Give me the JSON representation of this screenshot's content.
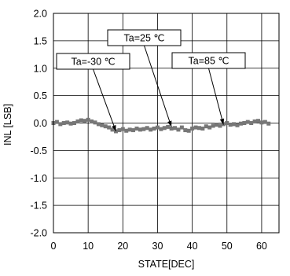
{
  "chart_data": {
    "type": "line",
    "xlabel": "STATE[DEC]",
    "ylabel": "INL [LSB]",
    "xlim": [
      0,
      65
    ],
    "ylim": [
      -2.0,
      2.0
    ],
    "x_ticks": [
      "0",
      "10",
      "20",
      "30",
      "40",
      "50",
      "60"
    ],
    "y_ticks": [
      "2.0",
      "1.5",
      "1.0",
      "0.5",
      "0.0",
      "-0.5",
      "-1.0",
      "-1.5",
      "-2.0"
    ],
    "grid": true,
    "series_color": "#777777",
    "x": [
      0,
      1,
      2,
      3,
      4,
      5,
      6,
      7,
      8,
      9,
      10,
      11,
      12,
      13,
      14,
      15,
      16,
      17,
      18,
      19,
      20,
      21,
      22,
      23,
      24,
      25,
      26,
      27,
      28,
      29,
      30,
      31,
      32,
      33,
      34,
      35,
      36,
      37,
      38,
      39,
      40,
      41,
      42,
      43,
      44,
      45,
      46,
      47,
      48,
      49,
      50,
      51,
      52,
      53,
      54,
      55,
      56,
      57,
      58,
      59,
      60,
      61,
      62
    ],
    "values": [
      0.0,
      0.02,
      -0.02,
      0.0,
      0.01,
      -0.01,
      0.0,
      0.03,
      0.05,
      0.04,
      0.06,
      0.03,
      0.01,
      -0.02,
      -0.04,
      -0.06,
      -0.08,
      -0.12,
      -0.15,
      -0.13,
      -0.11,
      -0.14,
      -0.12,
      -0.13,
      -0.1,
      -0.12,
      -0.11,
      -0.09,
      -0.12,
      -0.1,
      -0.08,
      -0.11,
      -0.09,
      -0.07,
      -0.1,
      -0.09,
      -0.12,
      -0.08,
      -0.13,
      -0.14,
      -0.1,
      -0.08,
      -0.09,
      -0.1,
      -0.06,
      -0.08,
      -0.05,
      -0.03,
      -0.05,
      -0.02,
      0.0,
      -0.03,
      -0.02,
      -0.04,
      -0.01,
      0.0,
      0.02,
      0.0,
      0.03,
      0.04,
      0.01,
      0.02,
      -0.01
    ],
    "annotations": [
      {
        "text": "Ta=-30 ℃",
        "target": [
          18,
          -0.15
        ]
      },
      {
        "text": "Ta=25 ℃",
        "target": [
          34,
          -0.07
        ]
      },
      {
        "text": "Ta=85 ℃",
        "target": [
          49,
          -0.03
        ]
      }
    ]
  }
}
